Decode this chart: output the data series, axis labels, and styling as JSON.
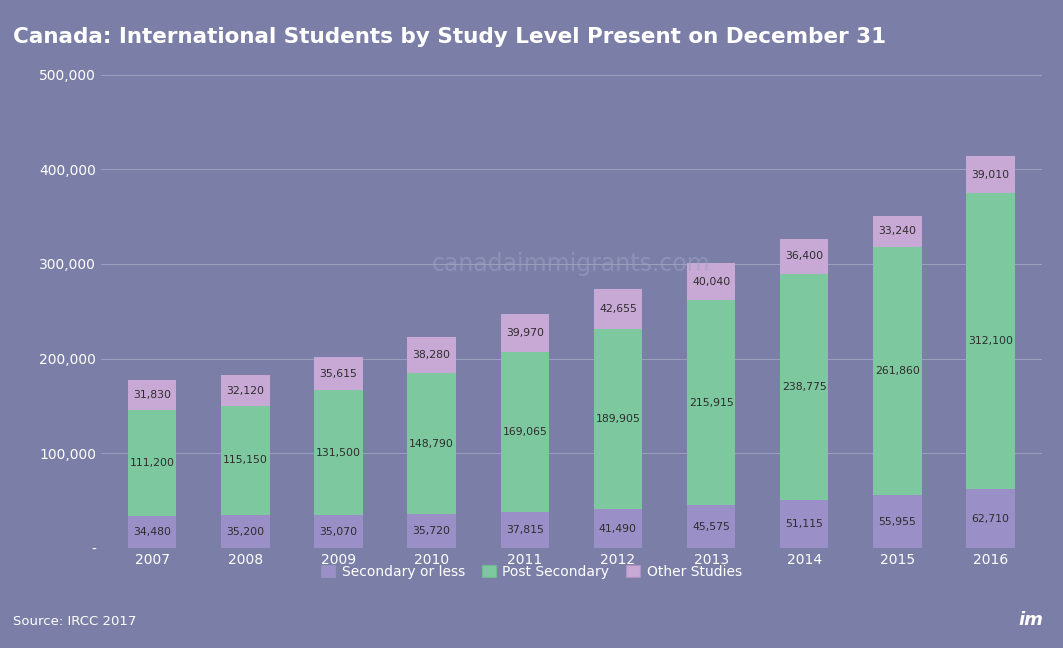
{
  "title": "Canada: International Students by Study Level Present on December 31",
  "years": [
    2007,
    2008,
    2009,
    2010,
    2011,
    2012,
    2013,
    2014,
    2015,
    2016
  ],
  "secondary_or_less": [
    34480,
    35200,
    35070,
    35720,
    37815,
    41490,
    45575,
    51115,
    55955,
    62710
  ],
  "post_secondary": [
    111200,
    115150,
    131500,
    148790,
    169065,
    189905,
    215915,
    238775,
    261860,
    312100
  ],
  "other_studies": [
    31830,
    32120,
    35615,
    38280,
    39970,
    42655,
    40040,
    36400,
    33240,
    39010
  ],
  "color_secondary": "#9b8fc8",
  "color_post_secondary": "#7ec8a0",
  "color_other": "#c8a8d4",
  "background_chart": "#7b7fa8",
  "background_title": "#555560",
  "background_footer": "#555560",
  "watermark_text": "canadaimmigrants.com",
  "watermark_color": "#9ba3c4",
  "source_text": "Source: IRCC 2017",
  "legend_labels": [
    "Secondary or less",
    "Post Secondary",
    "Other Studies"
  ],
  "ylim": [
    0,
    500000
  ],
  "yticks": [
    0,
    100000,
    200000,
    300000,
    400000,
    500000
  ],
  "ytick_labels": [
    "-",
    "100,000",
    "200,000",
    "300,000",
    "400,000",
    "500,000"
  ]
}
